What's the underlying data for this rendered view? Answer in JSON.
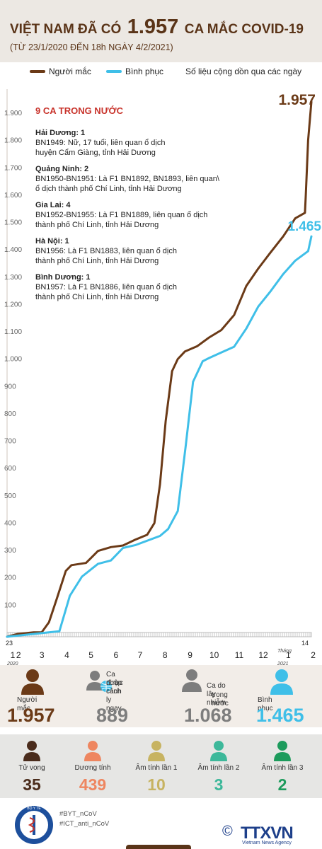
{
  "header": {
    "title_a": "VIỆT NAM ĐÃ CÓ",
    "title_b": "1.957",
    "title_c": "CA MẮC COVID-19",
    "subtitle": "(TỪ 23/1/2020 ĐẾN 18h NGÀY 4/2/2021)"
  },
  "legend": {
    "infected": "Người mắc",
    "recovered": "Bình phục",
    "note": "Số liệu cộng dồn qua các ngày"
  },
  "colors": {
    "infected": "#6b3a17",
    "recovered": "#3fbfe8",
    "accent_red": "#c8332b",
    "gray": "#7d7d7d"
  },
  "chart_data": {
    "type": "line",
    "title": "",
    "ylim": [
      0,
      1957
    ],
    "y_ticks": [
      "100",
      "200",
      "300",
      "400",
      "500",
      "600",
      "700",
      "800",
      "900",
      "1.000",
      "1.100",
      "1.200",
      "1.300",
      "1.400",
      "1.500",
      "1.600",
      "1.700",
      "1.800",
      "1.900"
    ],
    "y_tick_values": [
      100,
      200,
      300,
      400,
      500,
      600,
      700,
      800,
      900,
      1000,
      1100,
      1200,
      1300,
      1400,
      1500,
      1600,
      1700,
      1800,
      1900
    ],
    "x_ticks": [
      "1",
      "2",
      "3",
      "4",
      "5",
      "6",
      "7",
      "8",
      "9",
      "10",
      "11",
      "12",
      "1",
      "2"
    ],
    "x_tick_top_left": "23",
    "x_tick_top_right": "14",
    "year_start": "2020",
    "month_label_2021": "Tháng",
    "year_end": "2021",
    "series": [
      {
        "name": "Người mắc",
        "points": [
          [
            "2020-01-23",
            0
          ],
          [
            "2020-02-05",
            10
          ],
          [
            "2020-02-25",
            16
          ],
          [
            "2020-03-06",
            16
          ],
          [
            "2020-03-15",
            53
          ],
          [
            "2020-03-25",
            141
          ],
          [
            "2020-04-05",
            241
          ],
          [
            "2020-04-12",
            262
          ],
          [
            "2020-04-30",
            270
          ],
          [
            "2020-05-15",
            314
          ],
          [
            "2020-05-31",
            328
          ],
          [
            "2020-06-15",
            334
          ],
          [
            "2020-06-30",
            355
          ],
          [
            "2020-07-15",
            373
          ],
          [
            "2020-07-24",
            416
          ],
          [
            "2020-07-31",
            558
          ],
          [
            "2020-08-07",
            789
          ],
          [
            "2020-08-15",
            972
          ],
          [
            "2020-08-22",
            1016
          ],
          [
            "2020-08-31",
            1044
          ],
          [
            "2020-09-15",
            1063
          ],
          [
            "2020-09-30",
            1095
          ],
          [
            "2020-10-15",
            1122
          ],
          [
            "2020-10-31",
            1177
          ],
          [
            "2020-11-15",
            1283
          ],
          [
            "2020-11-30",
            1347
          ],
          [
            "2020-12-15",
            1405
          ],
          [
            "2020-12-31",
            1465
          ],
          [
            "2021-01-15",
            1531
          ],
          [
            "2021-01-27",
            1551
          ],
          [
            "2021-01-28",
            1610
          ],
          [
            "2021-01-31",
            1817
          ],
          [
            "2021-02-04",
            1957
          ]
        ],
        "last_label": "1.957"
      },
      {
        "name": "Bình phục",
        "points": [
          [
            "2020-01-23",
            0
          ],
          [
            "2020-03-15",
            16
          ],
          [
            "2020-03-28",
            20
          ],
          [
            "2020-04-10",
            150
          ],
          [
            "2020-04-25",
            220
          ],
          [
            "2020-05-15",
            267
          ],
          [
            "2020-05-31",
            279
          ],
          [
            "2020-06-15",
            325
          ],
          [
            "2020-06-30",
            335
          ],
          [
            "2020-07-31",
            369
          ],
          [
            "2020-08-10",
            394
          ],
          [
            "2020-08-22",
            460
          ],
          [
            "2020-09-01",
            700
          ],
          [
            "2020-09-10",
            933
          ],
          [
            "2020-09-22",
            1008
          ],
          [
            "2020-09-30",
            1020
          ],
          [
            "2020-10-15",
            1040
          ],
          [
            "2020-10-31",
            1061
          ],
          [
            "2020-11-15",
            1127
          ],
          [
            "2020-11-30",
            1208
          ],
          [
            "2020-12-15",
            1263
          ],
          [
            "2020-12-31",
            1327
          ],
          [
            "2021-01-15",
            1376
          ],
          [
            "2021-01-31",
            1411
          ],
          [
            "2021-02-04",
            1465
          ]
        ],
        "last_label": "1.465"
      }
    ],
    "grid": false
  },
  "notes": {
    "heading": "9 CA TRONG NƯỚC",
    "items": [
      {
        "place": "Hải Dương: 1",
        "lines": [
          "BN1949: Nữ, 17 tuổi, liên quan ổ dịch",
          "huyện Cẩm Giàng, tỉnh Hải Dương"
        ]
      },
      {
        "place": "Quảng Ninh: 2",
        "lines": [
          "BN1950-BN1951: Là F1 BN1892, BN1893, liên quan\\",
          "ổ dịch thành phố Chí Linh, tỉnh Hải Dương"
        ]
      },
      {
        "place": "Gia Lai: 4",
        "lines": [
          "BN1952-BN1955: Là F1 BN1889, liên quan ổ dịch",
          "thành phố Chí Linh, tỉnh Hải Dương"
        ]
      },
      {
        "place": "Hà Nội: 1",
        "lines": [
          "BN1956: Là F1 BN1883, liên quan ổ dịch",
          "thành phố Chí Linh, tỉnh Hải Dương"
        ]
      },
      {
        "place": "Bình Dương: 1",
        "lines": [
          "BN1957: Là F1 BN1886, liên quan ổ dịch",
          "thành phố Chí Linh, tỉnh Hải Dương"
        ]
      }
    ]
  },
  "summary": {
    "infected": {
      "label": "Người mắc",
      "value": "1.957"
    },
    "imported": {
      "label_1": "Ca nhập cảnh",
      "label_2": "được cách ly ngay",
      "value": "889"
    },
    "local": {
      "label_1": "Ca do lây nhiễm",
      "label_2": "trong nước",
      "value": "1.068"
    },
    "recovered": {
      "label": "Bình phục",
      "value": "1.465"
    }
  },
  "status": [
    {
      "label": "Tử vong",
      "value": "35",
      "color": "#4a2c1c"
    },
    {
      "label": "Dương tính",
      "value": "439",
      "color": "#ee8660"
    },
    {
      "label": "Âm tính lần 1",
      "value": "10",
      "color": "#c7b361"
    },
    {
      "label": "Âm tính lần 2",
      "value": "3",
      "color": "#3db89a"
    },
    {
      "label": "Âm tính lần 3",
      "value": "2",
      "color": "#1d9b5c"
    }
  ],
  "footer": {
    "tag_1": "#BYT_nCoV",
    "tag_2": "#ICT_anti_nCoV",
    "logo_text": "BỘ Y TẾ",
    "logo_sub": "MINISTRY OF HEALTH",
    "brand": "TTXVN",
    "brand_sub": "Vietnam News Agency"
  }
}
